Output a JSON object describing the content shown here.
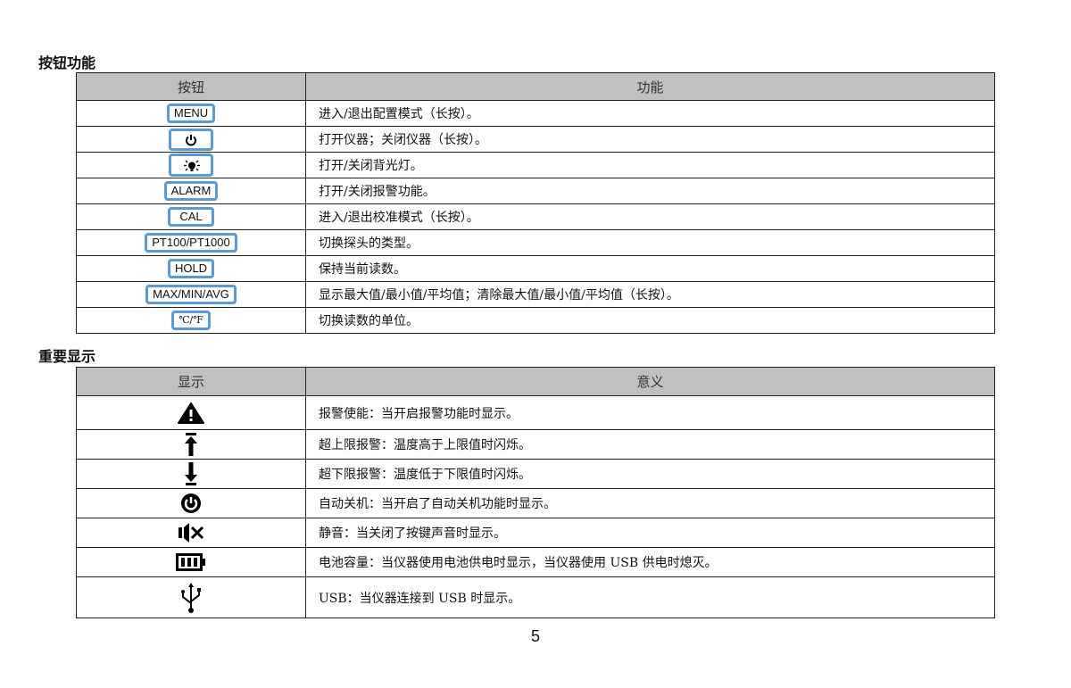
{
  "section1": {
    "title": "按钮功能",
    "headers": [
      "按钮",
      "功能"
    ],
    "rows": [
      {
        "button": "MENU",
        "function": "进入/退出配置模式（长按）。"
      },
      {
        "button": "power-icon",
        "function": "打开仪器；关闭仪器（长按）。"
      },
      {
        "button": "backlight-icon",
        "function": "打开/关闭背光灯。"
      },
      {
        "button": "ALARM",
        "function": "打开/关闭报警功能。"
      },
      {
        "button": "CAL",
        "function": "进入/退出校准模式（长按）。"
      },
      {
        "button": "PT100/PT1000",
        "function": "切换探头的类型。"
      },
      {
        "button": "HOLD",
        "function": "保持当前读数。"
      },
      {
        "button": "MAX/MIN/AVG",
        "function": "显示最大值/最小值/平均值；清除最大值/最小值/平均值（长按）。"
      },
      {
        "button": "℃/℉",
        "function": "切换读数的单位。"
      }
    ]
  },
  "section2": {
    "title": "重要显示",
    "headers": [
      "显示",
      "意义"
    ],
    "rows": [
      {
        "icon": "alarm-warning-icon",
        "meaning": "报警使能：当开启报警功能时显示。"
      },
      {
        "icon": "upper-limit-icon",
        "meaning": "超上限报警：温度高于上限值时闪烁。"
      },
      {
        "icon": "lower-limit-icon",
        "meaning": "超下限报警：温度低于下限值时闪烁。"
      },
      {
        "icon": "auto-power-off-icon",
        "meaning": "自动关机：当开启了自动关机功能时显示。"
      },
      {
        "icon": "mute-icon",
        "meaning": "静音：当关闭了按键声音时显示。"
      },
      {
        "icon": "battery-icon",
        "meaning": "电池容量：当仪器使用电池供电时显示，当仪器使用 USB 供电时熄灭。"
      },
      {
        "icon": "usb-icon",
        "meaning": "USB：当仪器连接到 USB 时显示。"
      }
    ]
  },
  "page_number": "5",
  "colors": {
    "button_border": "#5b9bd5",
    "header_bg": "#c0c0c0"
  }
}
